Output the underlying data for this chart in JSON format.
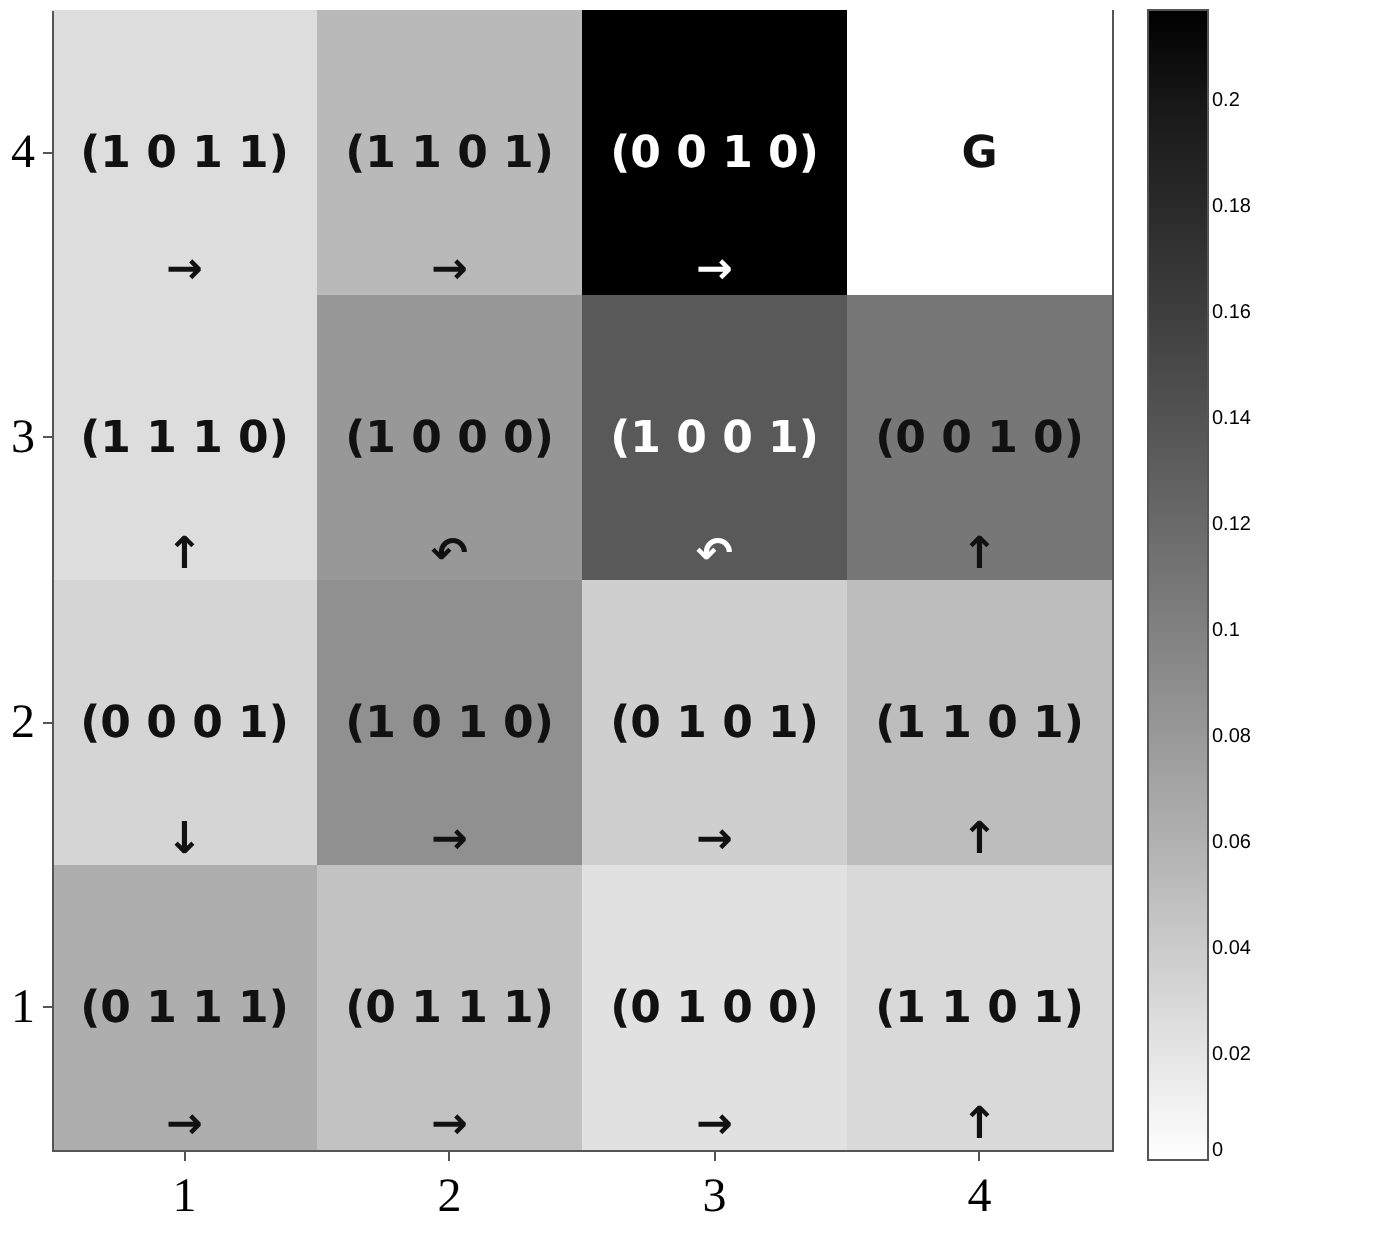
{
  "chart_data": {
    "type": "heatmap",
    "categories": [
      "1",
      "2",
      "3",
      "4"
    ],
    "y_categories": [
      "4",
      "3",
      "2",
      "1"
    ],
    "cells": [
      [
        0.026,
        0.054,
        0.217,
        0
      ],
      [
        0.026,
        0.081,
        0.135,
        0.108
      ],
      [
        0.032,
        0.087,
        0.037,
        0.051
      ],
      [
        0.063,
        0.047,
        0.023,
        0.029
      ]
    ],
    "cell_labels": [
      [
        "(1 0 1 1)\n→",
        "(1 1 0 1)\n→",
        "(0 0 1 0)\n→",
        "G"
      ],
      [
        "(1 1 1 0)\n↑",
        "(1 0 0 0)\n↶",
        "(1 0 0 1)\n↶",
        "(0 0 1 0)\n↑"
      ],
      [
        "(0 0 0 1)\n↓",
        "(1 0 1 0)\n→",
        "(0 1 0 1)\n→",
        "(1 1 0 1)\n↑"
      ],
      [
        "(0 1 1 1)\n→",
        "(0 1 1 1)\n→",
        "(0 1 0 0)\n→",
        "(1 1 0 1)\n↑"
      ]
    ],
    "clim": [
      0,
      0.217
    ],
    "cticks": [
      0,
      0.02,
      0.04,
      0.06,
      0.08,
      0.1,
      0.12,
      0.14,
      0.16,
      0.18,
      0.2
    ]
  }
}
